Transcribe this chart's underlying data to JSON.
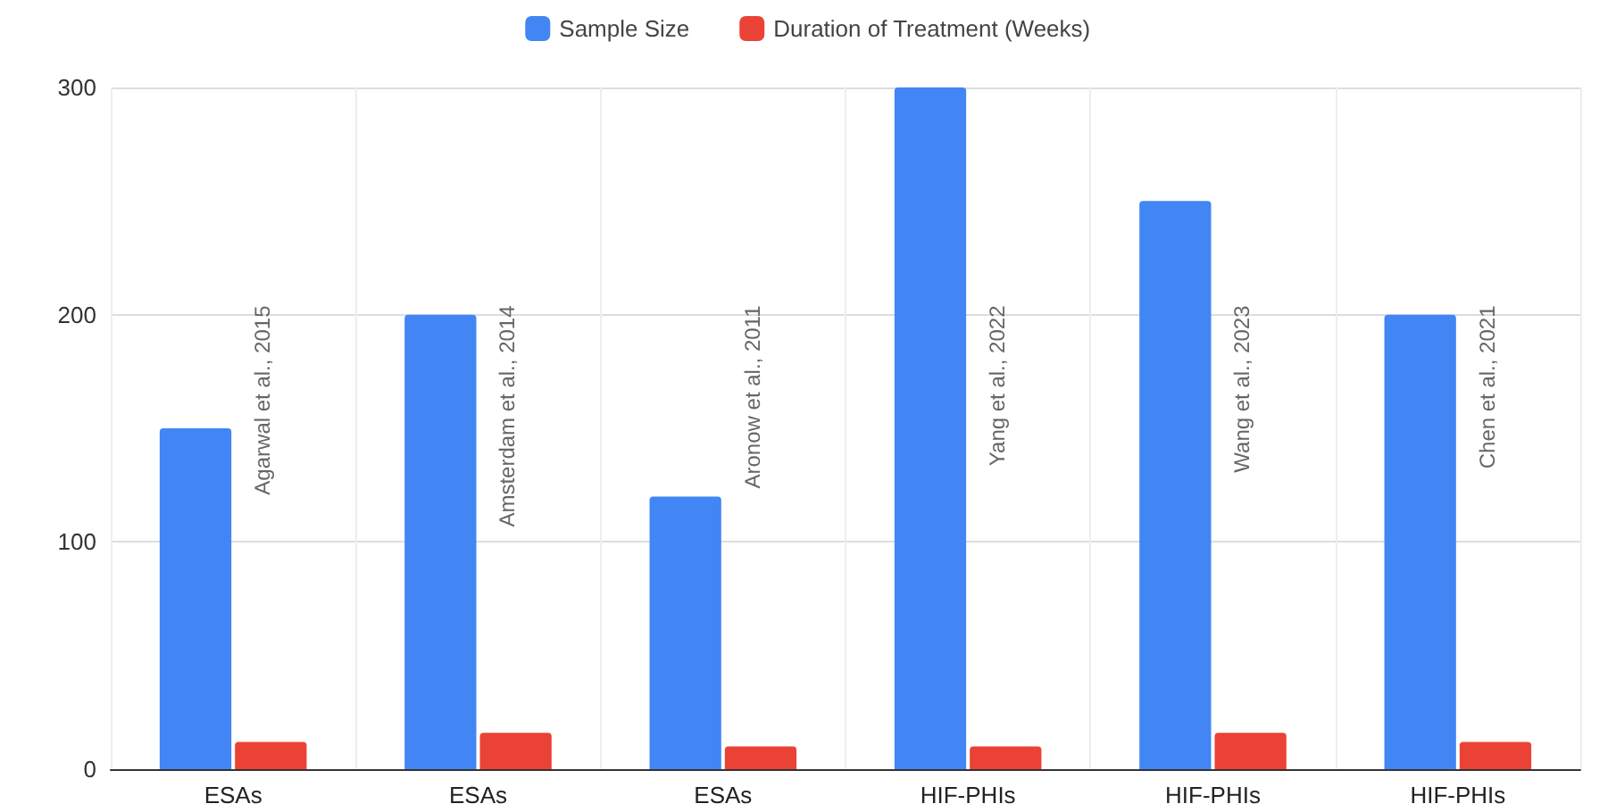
{
  "chart_data": {
    "type": "bar",
    "categories": [
      "ESAs",
      "ESAs",
      "ESAs",
      "HIF-PHIs",
      "HIF-PHIs",
      "HIF-PHIs"
    ],
    "series": [
      {
        "name": "Sample Size",
        "color": "#4285f4",
        "values": [
          150,
          200,
          120,
          300,
          250,
          200
        ]
      },
      {
        "name": "Duration of Treatment (Weeks)",
        "color": "#ea4335",
        "values": [
          12,
          16,
          10,
          10,
          16,
          12
        ]
      }
    ],
    "ylim": [
      0,
      300
    ],
    "yticks": [
      0,
      100,
      200,
      300
    ],
    "grid": true,
    "legend": "top",
    "annotations": [
      "Agarwal et al., 2015",
      "Amsterdam et al., 2014",
      "Aronow et al., 2011",
      "Yang et al., 2022",
      "Wang et al., 2023",
      "Chen et al., 2021"
    ]
  }
}
